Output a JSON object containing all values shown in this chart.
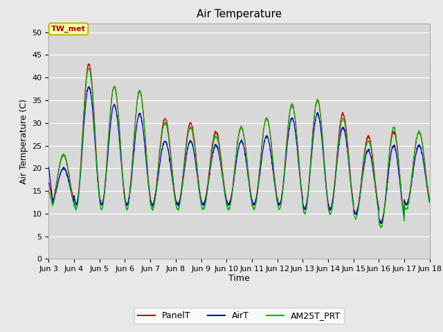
{
  "title": "Air Temperature",
  "xlabel": "Time",
  "ylabel": "Air Temperature (C)",
  "ylim": [
    0,
    52
  ],
  "yticks": [
    0,
    5,
    10,
    15,
    20,
    25,
    30,
    35,
    40,
    45,
    50
  ],
  "fig_bg_color": "#e8e8e8",
  "plot_bg_color": "#d8d8d8",
  "annotation_text": "TW_met",
  "annotation_bg": "#ffffaa",
  "annotation_border": "#bbbb00",
  "annotation_text_color": "#bb0000",
  "colors": {
    "PanelT": "#cc0000",
    "AirT": "#0000cc",
    "AM25T_PRT": "#00bb00"
  },
  "x_start": 3,
  "x_end": 18,
  "x_ticks": [
    3,
    4,
    5,
    6,
    7,
    8,
    9,
    10,
    11,
    12,
    13,
    14,
    15,
    16,
    17,
    18
  ],
  "title_fontsize": 11,
  "axis_label_fontsize": 9,
  "tick_fontsize": 8,
  "ppd": 144,
  "air_t_day_params": [
    {
      "base": 12,
      "amp": 8,
      "peak_hour": 0.58
    },
    {
      "base": 12,
      "amp": 26,
      "peak_hour": 0.58
    },
    {
      "base": 12,
      "amp": 22,
      "peak_hour": 0.58
    },
    {
      "base": 12,
      "amp": 20,
      "peak_hour": 0.58
    },
    {
      "base": 12,
      "amp": 14,
      "peak_hour": 0.58
    },
    {
      "base": 12,
      "amp": 14,
      "peak_hour": 0.58
    },
    {
      "base": 12,
      "amp": 13,
      "peak_hour": 0.58
    },
    {
      "base": 12,
      "amp": 14,
      "peak_hour": 0.58
    },
    {
      "base": 12,
      "amp": 15,
      "peak_hour": 0.58
    },
    {
      "base": 12,
      "amp": 19,
      "peak_hour": 0.58
    },
    {
      "base": 11,
      "amp": 21,
      "peak_hour": 0.58
    },
    {
      "base": 11,
      "amp": 18,
      "peak_hour": 0.58
    },
    {
      "base": 10,
      "amp": 14,
      "peak_hour": 0.58
    },
    {
      "base": 8,
      "amp": 17,
      "peak_hour": 0.58
    },
    {
      "base": 12,
      "amp": 13,
      "peak_hour": 0.58
    }
  ],
  "panel_extra": [
    3,
    5,
    4,
    5,
    5,
    4,
    3,
    3,
    4,
    3,
    3,
    3,
    3,
    3,
    3
  ],
  "am25_extra": [
    4,
    5,
    5,
    6,
    5,
    4,
    3,
    4,
    5,
    4,
    4,
    3,
    3,
    5,
    4
  ]
}
